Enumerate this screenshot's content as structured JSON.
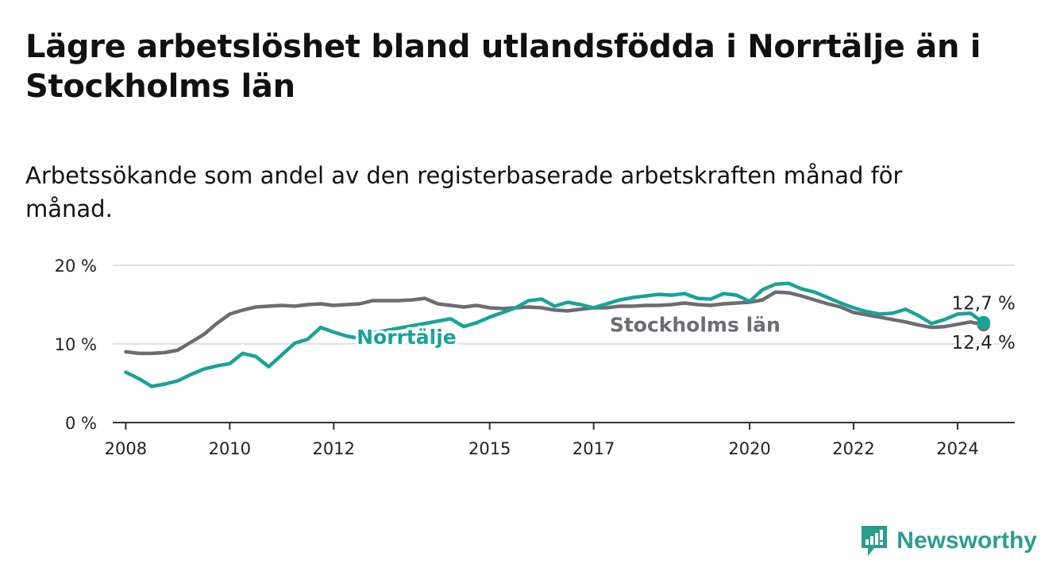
{
  "title": "Lägre arbetslöshet bland utlandsfödda i Norrtälje än i Stockholms län",
  "subtitle": "Arbetssökande som andel av den registerbaserade arbetskraften månad för månad.",
  "brand": {
    "name": "Newsworthy",
    "icon": "newsworthy-logo-icon",
    "color": "#2a9d8f"
  },
  "chart_data": {
    "type": "line",
    "title": "Lägre arbetslöshet bland utlandsfödda i Norrtälje än i Stockholms län",
    "subtitle": "Arbetssökande som andel av den registerbaserade arbetskraften månad för månad.",
    "xlabel": "",
    "ylabel": "",
    "xlim": [
      2007.75,
      2025.1
    ],
    "ylim": [
      0,
      20
    ],
    "x_ticks": [
      2008,
      2010,
      2012,
      2015,
      2017,
      2020,
      2022,
      2024
    ],
    "x_tick_labels": [
      "2008",
      "2010",
      "2012",
      "2015",
      "2017",
      "2020",
      "2022",
      "2024"
    ],
    "y_ticks": [
      0,
      10,
      20
    ],
    "y_tick_labels": [
      "0 %",
      "10 %",
      "20 %"
    ],
    "grid": true,
    "series": [
      {
        "name": "Stockholms län",
        "color": "#6e6c72",
        "x": [
          2008.0,
          2008.25,
          2008.5,
          2008.75,
          2009.0,
          2009.25,
          2009.5,
          2009.75,
          2010.0,
          2010.25,
          2010.5,
          2010.75,
          2011.0,
          2011.25,
          2011.5,
          2011.75,
          2012.0,
          2012.25,
          2012.5,
          2012.75,
          2013.0,
          2013.25,
          2013.5,
          2013.75,
          2014.0,
          2014.25,
          2014.5,
          2014.75,
          2015.0,
          2015.25,
          2015.5,
          2015.75,
          2016.0,
          2016.25,
          2016.5,
          2016.75,
          2017.0,
          2017.25,
          2017.5,
          2017.75,
          2018.0,
          2018.25,
          2018.5,
          2018.75,
          2019.0,
          2019.25,
          2019.5,
          2019.75,
          2020.0,
          2020.25,
          2020.5,
          2020.75,
          2021.0,
          2021.25,
          2021.5,
          2021.75,
          2022.0,
          2022.25,
          2022.5,
          2022.75,
          2023.0,
          2023.25,
          2023.5,
          2023.75,
          2024.0,
          2024.25,
          2024.5
        ],
        "y": [
          9.0,
          8.8,
          8.8,
          8.9,
          9.2,
          10.2,
          11.2,
          12.6,
          13.8,
          14.3,
          14.7,
          14.8,
          14.9,
          14.8,
          15.0,
          15.1,
          14.9,
          15.0,
          15.1,
          15.5,
          15.5,
          15.5,
          15.6,
          15.8,
          15.1,
          14.9,
          14.7,
          14.9,
          14.6,
          14.5,
          14.6,
          14.7,
          14.6,
          14.3,
          14.2,
          14.4,
          14.6,
          14.6,
          14.8,
          14.8,
          14.9,
          14.9,
          15.0,
          15.2,
          15.0,
          14.9,
          15.1,
          15.2,
          15.3,
          15.6,
          16.6,
          16.5,
          16.1,
          15.6,
          15.1,
          14.7,
          14.0,
          13.7,
          13.4,
          13.1,
          12.8,
          12.4,
          12.1,
          12.2,
          12.5,
          12.8,
          12.4
        ]
      },
      {
        "name": "Norrtälje",
        "color": "#1aa398",
        "x": [
          2008.0,
          2008.25,
          2008.5,
          2008.75,
          2009.0,
          2009.25,
          2009.5,
          2009.75,
          2010.0,
          2010.25,
          2010.5,
          2010.75,
          2011.0,
          2011.25,
          2011.5,
          2011.75,
          2012.0,
          2012.25,
          2012.5,
          2012.75,
          2013.0,
          2013.25,
          2013.5,
          2013.75,
          2014.0,
          2014.25,
          2014.5,
          2014.75,
          2015.0,
          2015.25,
          2015.5,
          2015.75,
          2016.0,
          2016.25,
          2016.5,
          2016.75,
          2017.0,
          2017.25,
          2017.5,
          2017.75,
          2018.0,
          2018.25,
          2018.5,
          2018.75,
          2019.0,
          2019.25,
          2019.5,
          2019.75,
          2020.0,
          2020.25,
          2020.5,
          2020.75,
          2021.0,
          2021.25,
          2021.5,
          2021.75,
          2022.0,
          2022.25,
          2022.5,
          2022.75,
          2023.0,
          2023.25,
          2023.5,
          2023.75,
          2024.0,
          2024.25,
          2024.5
        ],
        "y": [
          6.4,
          5.6,
          4.6,
          4.9,
          5.3,
          6.1,
          6.8,
          7.2,
          7.5,
          8.8,
          8.4,
          7.1,
          8.6,
          10.1,
          10.6,
          12.1,
          11.5,
          11.0,
          10.7,
          11.4,
          11.7,
          12.0,
          12.3,
          12.6,
          12.9,
          13.2,
          12.2,
          12.7,
          13.4,
          14.0,
          14.6,
          15.5,
          15.7,
          14.8,
          15.3,
          15.0,
          14.6,
          15.1,
          15.6,
          15.9,
          16.1,
          16.3,
          16.2,
          16.4,
          15.8,
          15.7,
          16.4,
          16.2,
          15.4,
          16.9,
          17.6,
          17.7,
          17.0,
          16.6,
          15.9,
          15.2,
          14.6,
          14.1,
          13.8,
          13.9,
          14.4,
          13.6,
          12.6,
          13.1,
          13.8,
          13.9,
          12.7
        ]
      }
    ],
    "end_labels": [
      {
        "series": "Norrtälje",
        "value": 12.7,
        "text": "12,7 %"
      },
      {
        "series": "Stockholms län",
        "value": 12.4,
        "text": "12,4 %"
      }
    ]
  }
}
